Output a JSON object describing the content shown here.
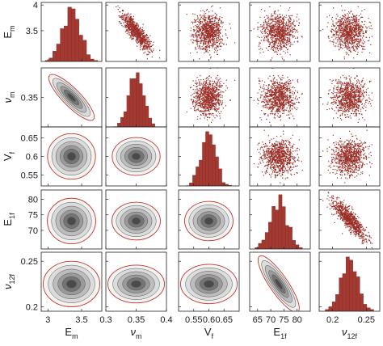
{
  "chart_data": {
    "type": "scatter",
    "variables": [
      {
        "key": "Em",
        "label": "E",
        "sub": "m",
        "greek": false,
        "range": [
          2.9,
          3.8
        ],
        "ticks": [
          3,
          3.5
        ],
        "tick_labels": [
          "3",
          "3.5"
        ],
        "mean": 3.35,
        "sd": 0.13
      },
      {
        "key": "num",
        "label": "ν",
        "sub": "m",
        "greek": true,
        "range": [
          0.3,
          0.4
        ],
        "ticks": [
          0.3,
          0.35,
          0.4
        ],
        "tick_labels": [
          "0.3",
          "0.35",
          "0.4"
        ],
        "mean": 0.35,
        "sd": 0.012
      },
      {
        "key": "Vf",
        "label": "V",
        "sub": "f",
        "greek": false,
        "range": [
          0.5,
          0.7
        ],
        "ticks": [
          0.55,
          0.6,
          0.65
        ],
        "tick_labels": [
          "0.55",
          "0.6",
          "0.65"
        ],
        "mean": 0.6,
        "sd": 0.025
      },
      {
        "key": "E1f",
        "label": "E",
        "sub": "1f",
        "greek": false,
        "range": [
          62,
          85
        ],
        "ticks": [
          65,
          70,
          75,
          80
        ],
        "tick_labels": [
          "65",
          "70",
          "75",
          "80"
        ],
        "mean": 73.0,
        "sd": 3.0
      },
      {
        "key": "nu12f",
        "label": "ν",
        "sub": "12f",
        "greek": true,
        "range": [
          0.18,
          0.27
        ],
        "ticks": [
          0.2,
          0.25
        ],
        "tick_labels": [
          "0.2",
          "0.25"
        ],
        "mean": 0.225,
        "sd": 0.012
      }
    ],
    "y_axis_ticks": [
      {
        "row": 0,
        "ticks": [
          3.5,
          4
        ],
        "tick_labels": [
          "3.5",
          "4"
        ],
        "range": [
          2.9,
          4.05
        ]
      },
      {
        "row": 1,
        "ticks": [
          0.35
        ],
        "tick_labels": [
          "0.35"
        ],
        "range": [
          0.31,
          0.39
        ]
      },
      {
        "row": 2,
        "ticks": [
          0.55,
          0.6,
          0.65
        ],
        "tick_labels": [
          "0.55",
          "0.6",
          "0.65"
        ],
        "range": [
          0.52,
          0.68
        ]
      },
      {
        "row": 3,
        "ticks": [
          70,
          75,
          80
        ],
        "tick_labels": [
          "70",
          "75",
          "80"
        ],
        "range": [
          64,
          83
        ]
      },
      {
        "row": 4,
        "ticks": [
          0.2,
          0.25
        ],
        "tick_labels": [
          "0.2",
          "0.25"
        ],
        "range": [
          0.195,
          0.26
        ]
      }
    ],
    "correlations": [
      {
        "pair": [
          "Em",
          "num"
        ],
        "r": -0.85
      },
      {
        "pair": [
          "E1f",
          "nu12f"
        ],
        "r": -0.85
      }
    ],
    "lower_triangle": "filled-contour",
    "upper_triangle": "scatter",
    "diagonal": "histogram",
    "histogram_bins": 14,
    "colors": {
      "samples": "#a33a32",
      "contour_edge": "#c0392b",
      "contour_fill_dark": "#3a3a3a",
      "contour_fill_light": "#f2f2f2"
    },
    "grid": false,
    "title": ""
  }
}
